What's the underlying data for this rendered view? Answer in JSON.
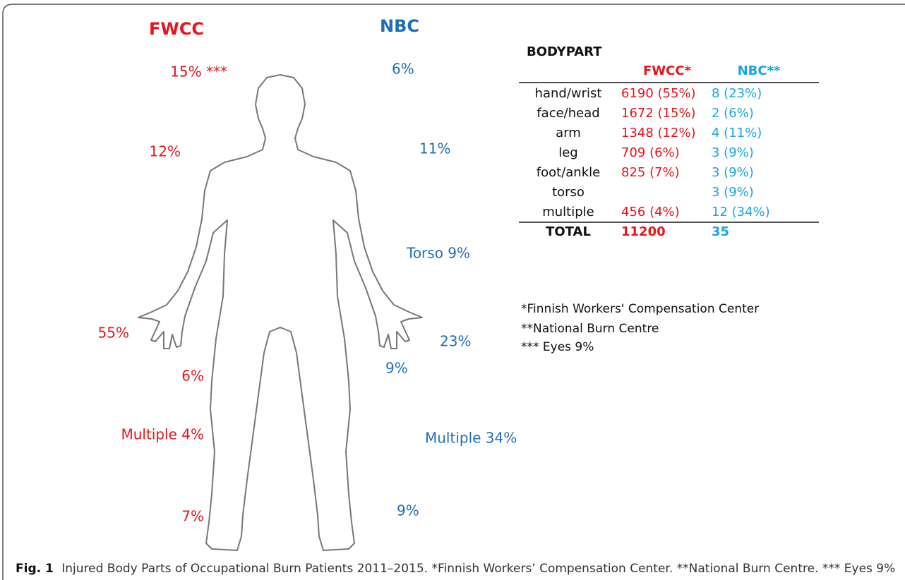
{
  "figure": {
    "fwcc_header": "FWCC",
    "nbc_header": "NBC",
    "fwcc_labels": [
      "15% ***",
      "12%",
      "55%",
      "6%",
      "Multiple 4%",
      "7%"
    ],
    "nbc_labels": [
      "6%",
      "11%",
      "Torso 9%",
      "23%",
      "9%",
      "Multiple 34%",
      "9%"
    ]
  },
  "table": {
    "title": "BODYPART",
    "columns": [
      "FWCC*",
      "NBC**"
    ],
    "rows": [
      [
        "hand/wrist",
        "6190 (55%)",
        "8 (23%)"
      ],
      [
        "face/head",
        "1672 (15%)",
        "2 (6%)"
      ],
      [
        "arm",
        "1348 (12%)",
        "4 (11%)"
      ],
      [
        "leg",
        "709 (6%)",
        "3 (9%)"
      ],
      [
        "foot/ankle",
        "825 (7%)",
        "3 (9%)"
      ],
      [
        "torso",
        null,
        "3 (9%)"
      ],
      [
        "multiple",
        "456 (4%)",
        "12 (34%)"
      ]
    ],
    "total": [
      "TOTAL",
      "11200",
      "35"
    ]
  },
  "notes": [
    "*Finnish Workers' Compensation Center",
    "**National Burn Centre",
    "*** Eyes 9%"
  ],
  "caption": {
    "label": "Fig. 1",
    "text": "Injured Body Parts of Occupational Burn Patients 2011–2015. *Finnish Workers’ Compensation Center. **National Burn Centre. *** Eyes 9%"
  }
}
